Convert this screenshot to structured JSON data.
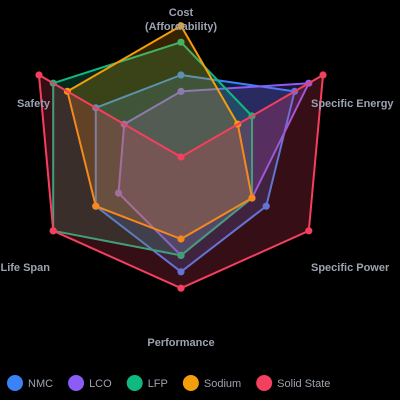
{
  "chart_data": {
    "type": "radar",
    "axes": [
      "Cost (Affordability)",
      "Specific Energy",
      "Specific Power",
      "Performance",
      "Life Span",
      "Safety"
    ],
    "axis_label_lines": [
      [
        "Cost",
        "(Affordability)"
      ],
      [
        "Specific Energy"
      ],
      [
        "Specific Power"
      ],
      [
        "Performance"
      ],
      [
        "Life Span"
      ],
      [
        "Safety"
      ]
    ],
    "range": [
      0,
      5
    ],
    "grid": false,
    "legend_position": "bottom-left",
    "series": [
      {
        "name": "NMC",
        "color": "#3b82f6",
        "values": [
          2.5,
          4,
          3,
          3.5,
          3,
          3
        ]
      },
      {
        "name": "LCO",
        "color": "#8b5cf6",
        "values": [
          2,
          4.5,
          2.5,
          3,
          2.2,
          2
        ]
      },
      {
        "name": "LFP",
        "color": "#10b981",
        "values": [
          3.5,
          2.5,
          2.5,
          3,
          4.5,
          4.5
        ]
      },
      {
        "name": "Sodium",
        "color": "#f59e0b",
        "values": [
          4,
          2,
          2.5,
          2.5,
          3,
          4
        ]
      },
      {
        "name": "Solid State",
        "color": "#f43f5e",
        "values": [
          0,
          5,
          4.5,
          4,
          4.5,
          5
        ]
      }
    ]
  }
}
